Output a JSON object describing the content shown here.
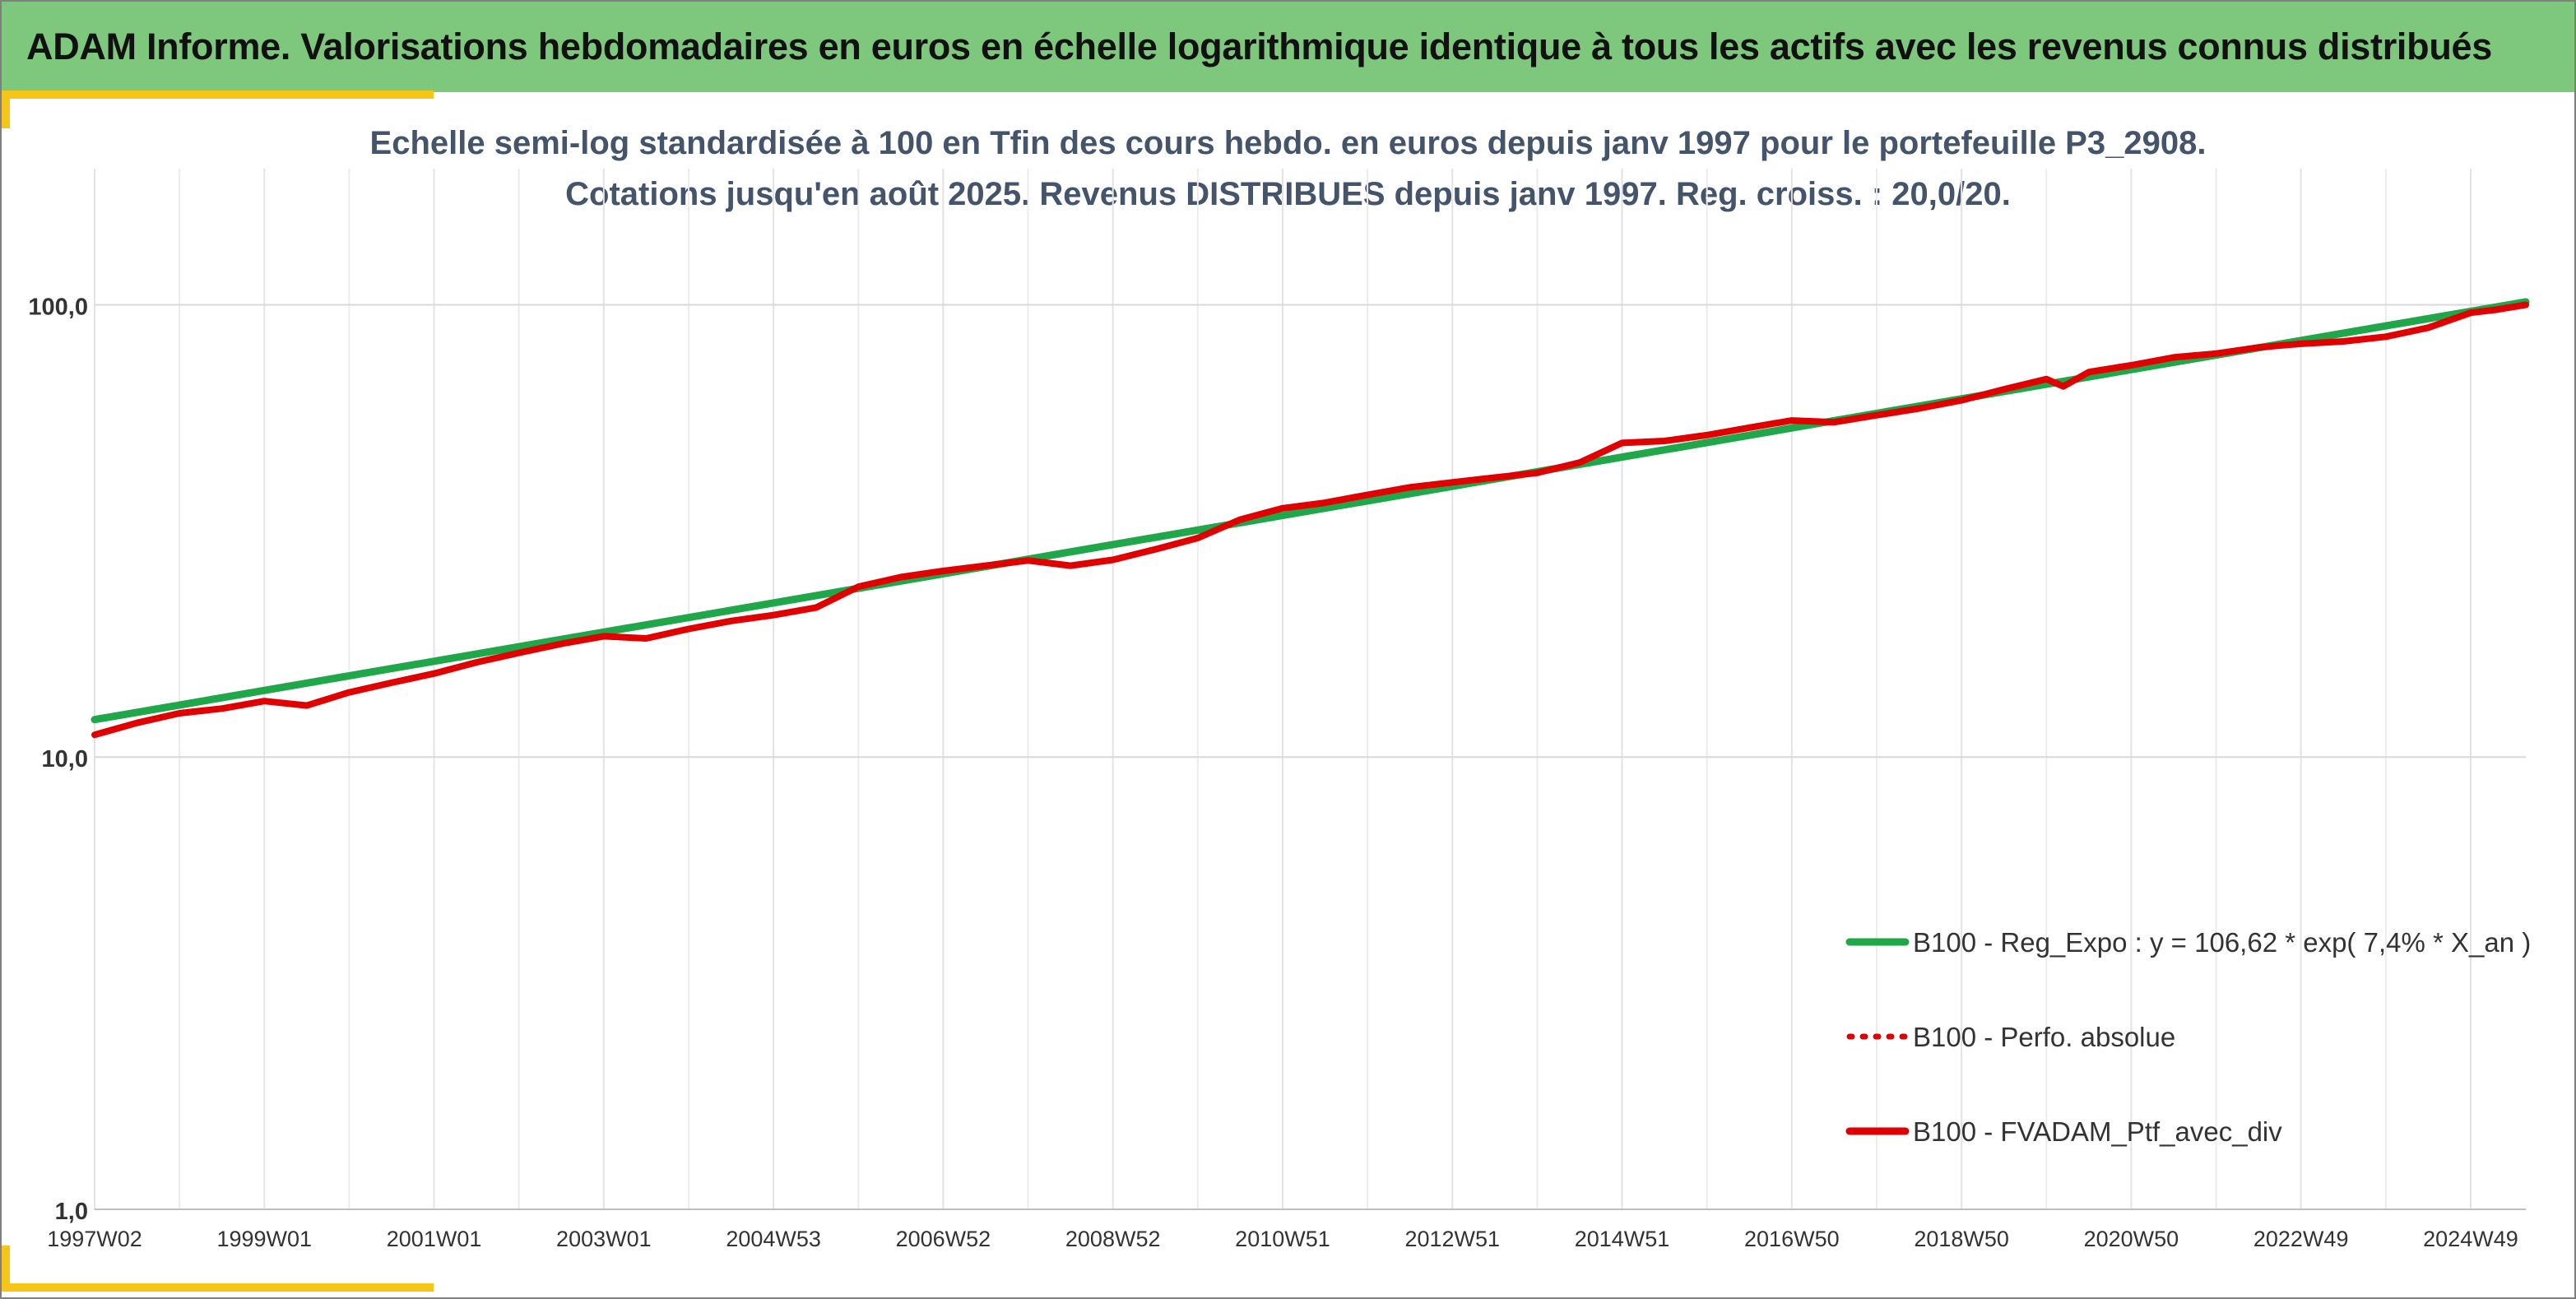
{
  "header": {
    "title": "ADAM Informe. Valorisations hebdomadaires en euros en échelle logarithmique identique à tous les actifs avec les revenus connus distribués"
  },
  "chart_data": {
    "type": "line",
    "title_line1": "Echelle semi-log standardisée à 100 en Tfin des cours hebdo. en euros depuis janv 1997 pour le portefeuille P3_2908.",
    "title_line2": "Cotations jusqu'en août 2025. Revenus DISTRIBUES depuis janv 1997. Reg. croiss. : 20,0/20.",
    "y_scale": "log",
    "ylim": [
      1,
      200
    ],
    "y_ticks": [
      {
        "value": 100,
        "label": "100,0"
      },
      {
        "value": 10,
        "label": "10,0"
      },
      {
        "value": 1,
        "label": "1,0"
      }
    ],
    "xlim": [
      1997.0,
      2025.65
    ],
    "x_ticks": [
      {
        "value": 1997.0,
        "label": "1997W02"
      },
      {
        "value": 1999.0,
        "label": "1999W01"
      },
      {
        "value": 2001.0,
        "label": "2001W01"
      },
      {
        "value": 2003.0,
        "label": "2003W01"
      },
      {
        "value": 2005.0,
        "label": "2004W53"
      },
      {
        "value": 2007.0,
        "label": "2006W52"
      },
      {
        "value": 2009.0,
        "label": "2008W52"
      },
      {
        "value": 2011.0,
        "label": "2010W51"
      },
      {
        "value": 2013.0,
        "label": "2012W51"
      },
      {
        "value": 2015.0,
        "label": "2014W51"
      },
      {
        "value": 2017.0,
        "label": "2016W50"
      },
      {
        "value": 2019.0,
        "label": "2018W50"
      },
      {
        "value": 2021.0,
        "label": "2020W50"
      },
      {
        "value": 2023.0,
        "label": "2022W49"
      },
      {
        "value": 2025.0,
        "label": "2024W49"
      }
    ],
    "grid": true,
    "legend_position": "bottom-right",
    "series": [
      {
        "name": "B100 - Reg_Expo : y = 106,62 * exp( 7,4% *  X_an )",
        "color": "#1fa74a",
        "style": "solid",
        "x": [
          1997.0,
          2025.65
        ],
        "values": [
          12.1,
          101.5
        ]
      },
      {
        "name": "B100 - Perfo. absolue",
        "color": "#e00000",
        "style": "dotted",
        "x": [],
        "values": []
      },
      {
        "name": "B100 - FVADAM_Ptf_avec_div",
        "color": "#e00000",
        "style": "solid",
        "x": [
          1997.0,
          1997.5,
          1998.0,
          1998.5,
          1999.0,
          1999.5,
          2000.0,
          2000.5,
          2001.0,
          2001.5,
          2002.0,
          2002.5,
          2003.0,
          2003.5,
          2004.0,
          2004.5,
          2005.0,
          2005.5,
          2006.0,
          2006.5,
          2007.0,
          2007.5,
          2008.0,
          2008.5,
          2009.0,
          2009.5,
          2010.0,
          2010.5,
          2011.0,
          2011.5,
          2012.0,
          2012.5,
          2013.0,
          2013.5,
          2014.0,
          2014.5,
          2015.0,
          2015.5,
          2016.0,
          2016.5,
          2017.0,
          2017.5,
          2018.0,
          2018.5,
          2019.0,
          2019.5,
          2020.0,
          2020.2,
          2020.5,
          2021.0,
          2021.5,
          2022.0,
          2022.5,
          2023.0,
          2023.5,
          2024.0,
          2024.5,
          2025.0,
          2025.3,
          2025.65
        ],
        "values": [
          11.2,
          11.9,
          12.5,
          12.8,
          13.3,
          13.0,
          13.9,
          14.6,
          15.3,
          16.2,
          17.0,
          17.8,
          18.5,
          18.3,
          19.2,
          20.0,
          20.6,
          21.4,
          23.8,
          25.0,
          25.8,
          26.5,
          27.2,
          26.5,
          27.3,
          28.8,
          30.5,
          33.5,
          35.5,
          36.5,
          38.0,
          39.5,
          40.5,
          41.5,
          42.5,
          44.8,
          49.5,
          50.0,
          51.5,
          53.5,
          55.5,
          55.0,
          57.0,
          59.0,
          61.5,
          65.0,
          68.5,
          66.0,
          71.0,
          73.5,
          76.5,
          78.0,
          80.5,
          82.0,
          83.0,
          85.0,
          89.0,
          96.0,
          97.5,
          100.0
        ]
      }
    ]
  }
}
